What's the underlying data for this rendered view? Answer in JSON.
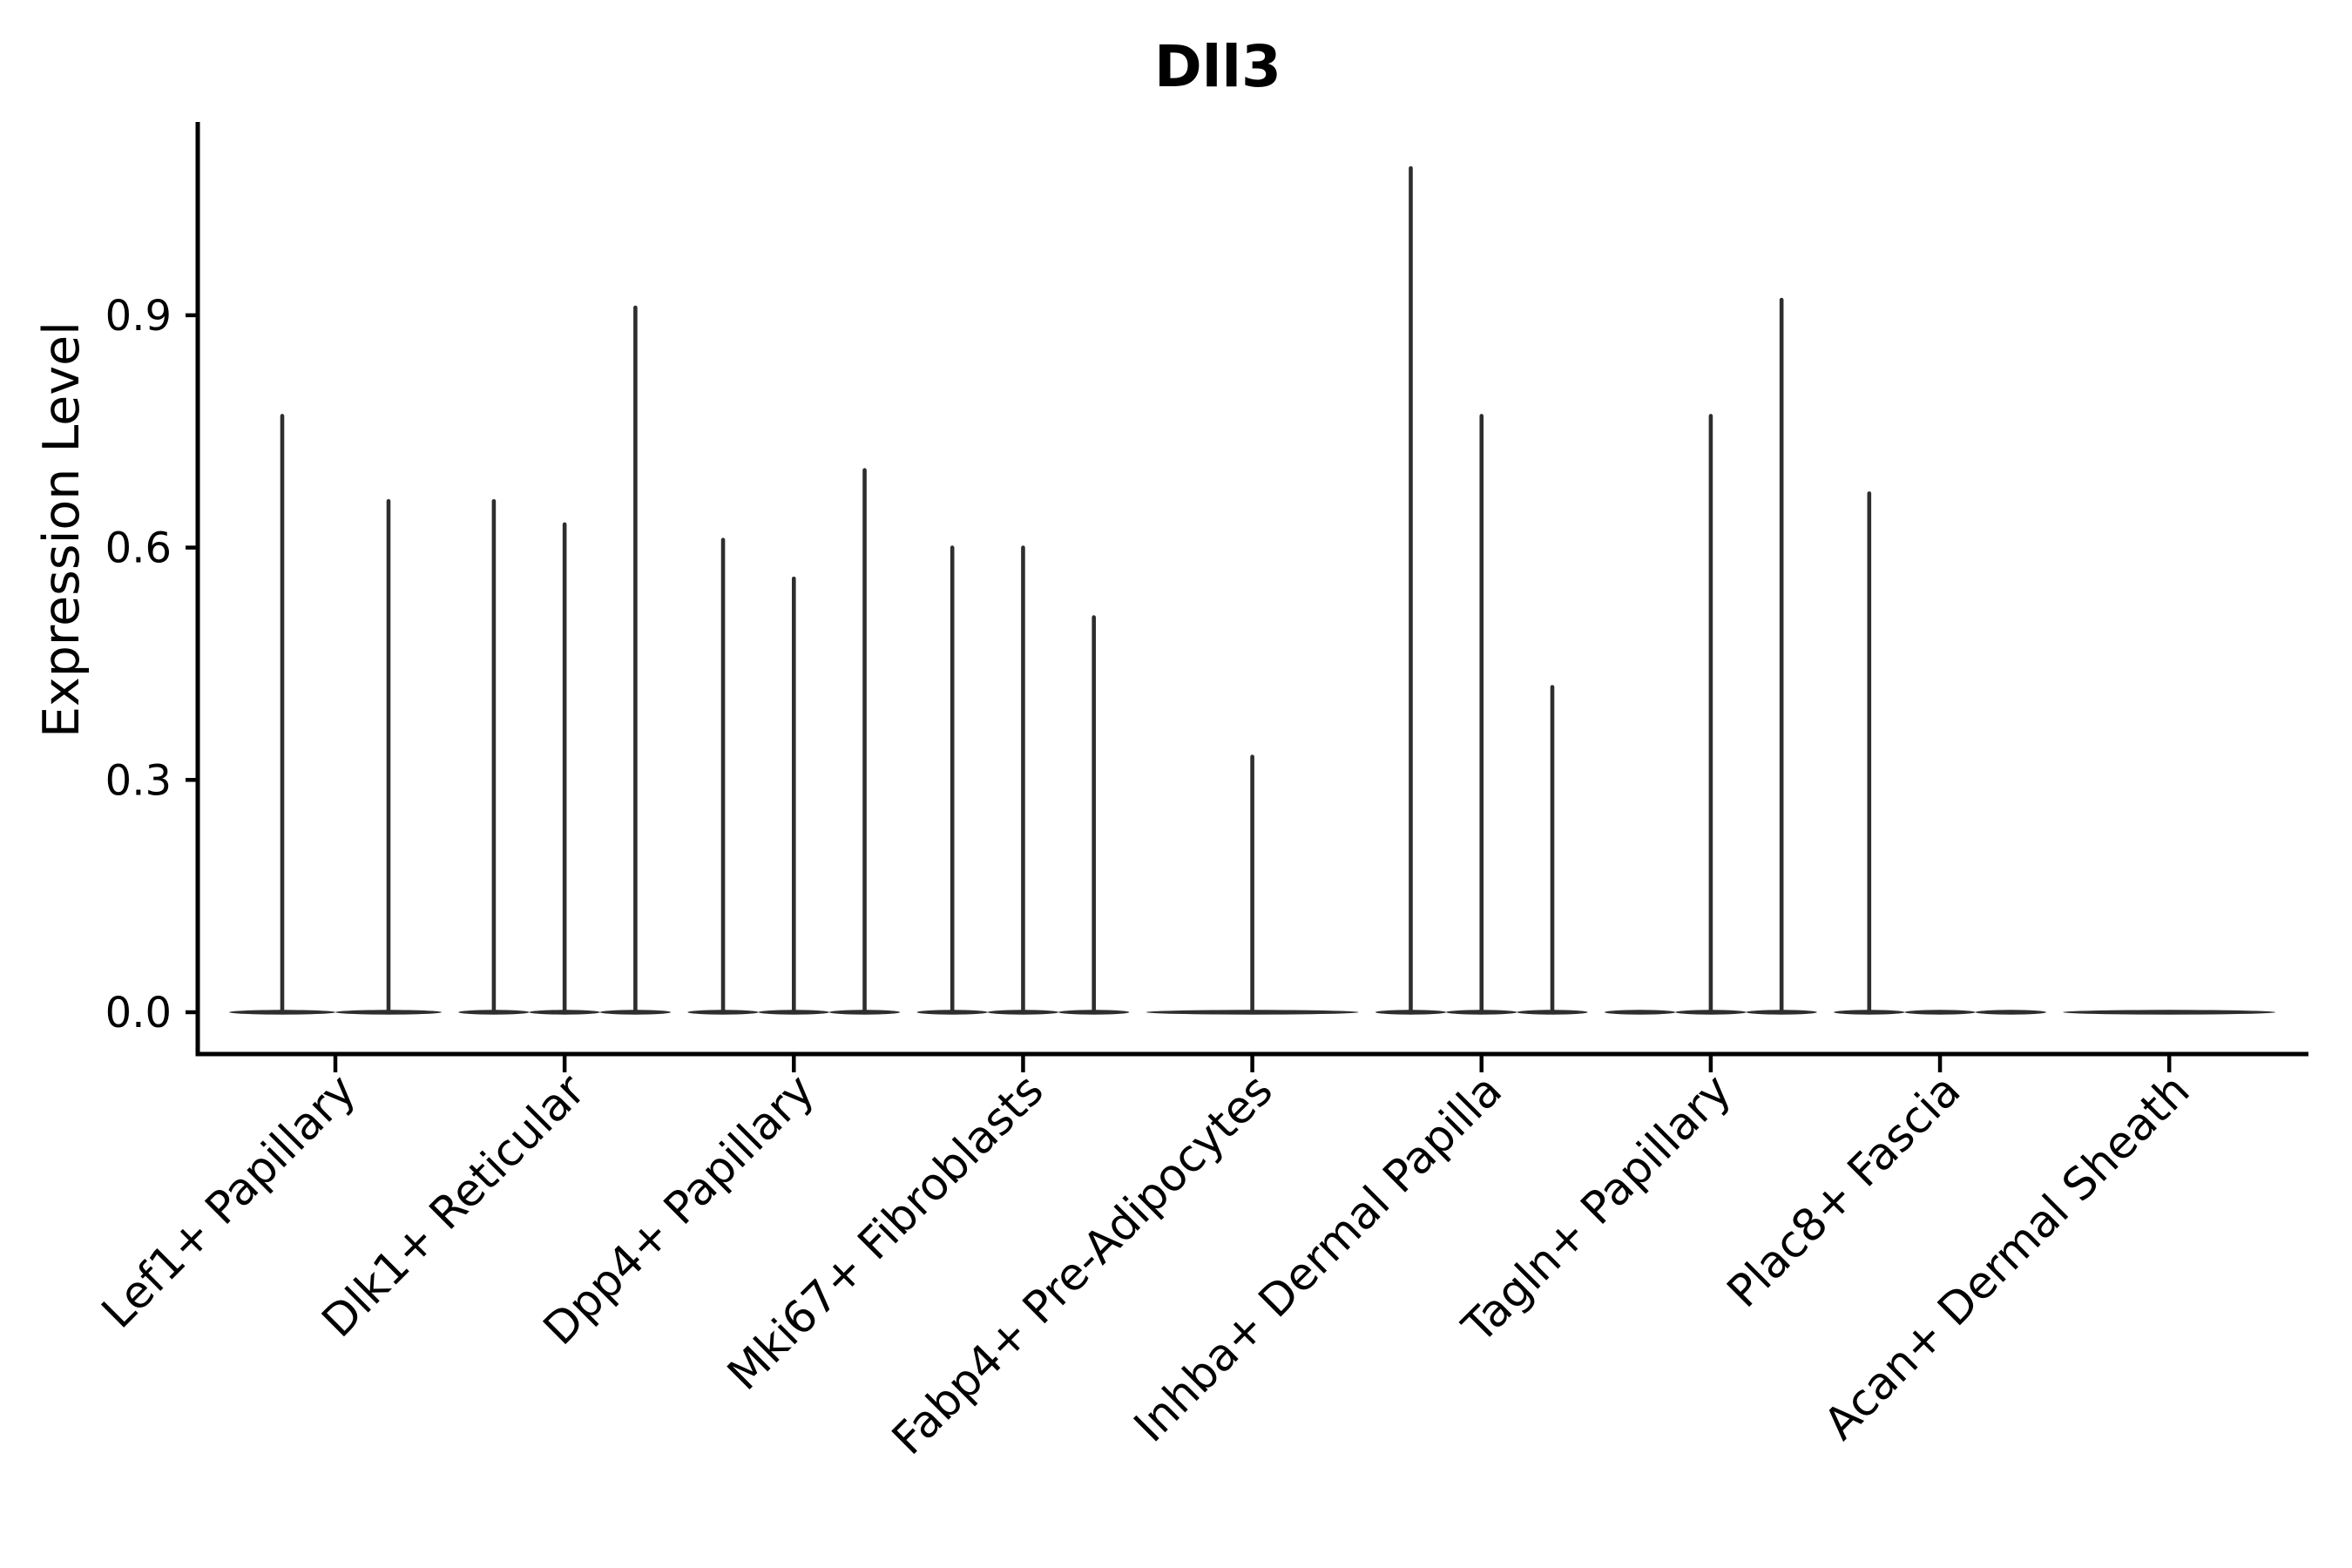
{
  "title": "Dll3",
  "y_axis": {
    "label": "Expression Level",
    "tick_labels": [
      "0.0",
      "0.3",
      "0.6",
      "0.9"
    ]
  },
  "x_axis": {
    "label": "",
    "tick_labels": [
      "Lef1+ Papillary",
      "Dlk1+ Reticular",
      "Dpp4+ Papillary",
      "Mki67+ Fibroblasts",
      "Fabp4+ Pre-Adipocytes",
      "Inhba+ Dermal Papilla",
      "Tagln+ Papillary",
      "Plac8+ Fascia",
      "Acan+ Dermal Sheath"
    ]
  },
  "chart_data": {
    "type": "violin",
    "title": "Dll3",
    "ylabel": "Expression Level",
    "xlabel": "",
    "yticks": [
      0.0,
      0.3,
      0.6,
      0.9
    ],
    "ylim": [
      -0.055,
      1.15
    ],
    "grid": false,
    "legend": "none",
    "categories": [
      "Lef1+ Papillary",
      "Dlk1+ Reticular",
      "Dpp4+ Papillary",
      "Mki67+ Fibroblasts",
      "Fabp4+ Pre-Adipocytes",
      "Inhba+ Dermal Papilla",
      "Tagln+ Papillary",
      "Plac8+ Fascia",
      "Acan+ Dermal Sheath"
    ],
    "groups": [
      {
        "category": "Lef1+ Papillary",
        "violins": [
          {
            "pos": -0.25,
            "half_width": 0.25,
            "max": 0.77
          },
          {
            "pos": 0.25,
            "half_width": 0.25,
            "max": 0.66
          }
        ]
      },
      {
        "category": "Dlk1+ Reticular",
        "violins": [
          {
            "pos": -0.333,
            "half_width": 0.1667,
            "max": 0.66
          },
          {
            "pos": 0.0,
            "half_width": 0.1667,
            "max": 0.63
          },
          {
            "pos": 0.333,
            "half_width": 0.1667,
            "max": 0.91
          }
        ]
      },
      {
        "category": "Dpp4+ Papillary",
        "violins": [
          {
            "pos": -0.333,
            "half_width": 0.1667,
            "max": 0.61
          },
          {
            "pos": 0.0,
            "half_width": 0.1667,
            "max": 0.56
          },
          {
            "pos": 0.333,
            "half_width": 0.1667,
            "max": 0.7
          }
        ]
      },
      {
        "category": "Mki67+ Fibroblasts",
        "violins": [
          {
            "pos": -0.333,
            "half_width": 0.1667,
            "max": 0.6
          },
          {
            "pos": 0.0,
            "half_width": 0.1667,
            "max": 0.6
          },
          {
            "pos": 0.333,
            "half_width": 0.1667,
            "max": 0.51
          }
        ]
      },
      {
        "category": "Fabp4+ Pre-Adipocytes",
        "violins": [
          {
            "pos": 0.0,
            "half_width": 0.5,
            "max": 0.33
          }
        ]
      },
      {
        "category": "Inhba+ Dermal Papilla",
        "violins": [
          {
            "pos": -0.333,
            "half_width": 0.1667,
            "max": 1.09
          },
          {
            "pos": 0.0,
            "half_width": 0.1667,
            "max": 0.77
          },
          {
            "pos": 0.333,
            "half_width": 0.1667,
            "max": 0.42
          }
        ]
      },
      {
        "category": "Tagln+ Papillary",
        "violins": [
          {
            "pos": -0.333,
            "half_width": 0.1667,
            "max": 0
          },
          {
            "pos": 0.0,
            "half_width": 0.1667,
            "max": 0.77
          },
          {
            "pos": 0.333,
            "half_width": 0.1667,
            "max": 0.92
          }
        ]
      },
      {
        "category": "Plac8+ Fascia",
        "violins": [
          {
            "pos": -0.333,
            "half_width": 0.1667,
            "max": 0.67
          },
          {
            "pos": 0.0,
            "half_width": 0.1667,
            "max": 0
          },
          {
            "pos": 0.333,
            "half_width": 0.1667,
            "max": 0
          }
        ]
      },
      {
        "category": "Acan+ Dermal Sheath",
        "violins": [
          {
            "pos": 0.0,
            "half_width": 0.5,
            "max": 0
          }
        ]
      }
    ],
    "colors": {
      "violin_stroke": "#2e2e2e",
      "axis": "#000000",
      "text": "#000000",
      "background": "#ffffff"
    }
  }
}
